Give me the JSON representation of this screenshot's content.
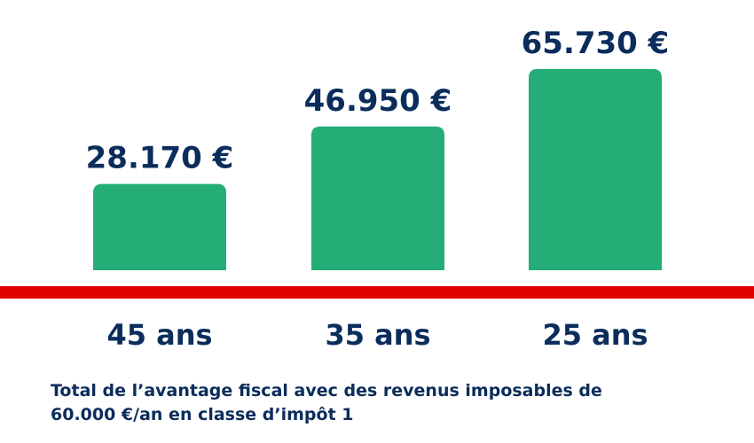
{
  "chart_data": {
    "type": "bar",
    "categories": [
      "45 ans",
      "35 ans",
      "25 ans"
    ],
    "values": [
      28170,
      46950,
      65730
    ],
    "data_labels": [
      "28.170 €",
      "46.950 €",
      "65.730 €"
    ],
    "title": "",
    "xlabel": "",
    "ylabel": "",
    "ylim": [
      0,
      66000
    ],
    "grid": false,
    "colors": {
      "bar": "#24ad77",
      "text": "#0b2d5b",
      "baseline": "#e00000"
    }
  },
  "caption": {
    "line1": "Total de l’avantage fiscal avec des revenus imposables de",
    "line2": "60.000 €/an en classe d’impôt 1"
  }
}
